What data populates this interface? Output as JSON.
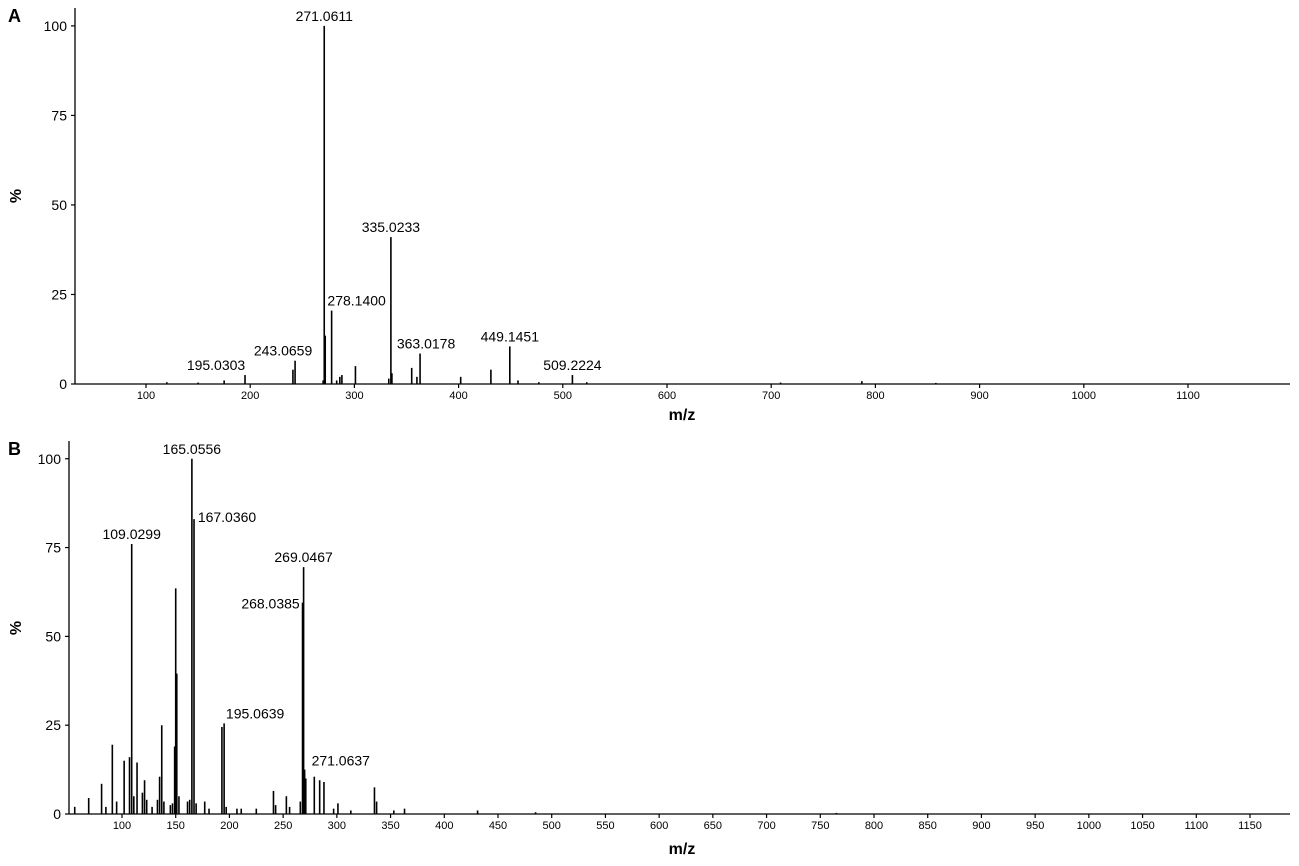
{
  "chart_data": [
    {
      "panel": "A",
      "type": "bar",
      "title": "",
      "xlabel": "m/z",
      "ylabel": "%",
      "xlim": [
        30,
        1200
      ],
      "ylim": [
        0,
        105
      ],
      "xticks": [
        100,
        200,
        300,
        400,
        500,
        600,
        700,
        800,
        900,
        1000,
        1100
      ],
      "xtick_labels": [
        "100",
        "200",
        "300",
        "400",
        "500",
        "600",
        "700",
        "800",
        "900",
        "1000",
        "1100"
      ],
      "yticks": [
        0,
        25,
        50,
        75,
        100
      ],
      "ytick_labels": [
        "0",
        "25",
        "50",
        "75",
        "100"
      ],
      "peaks": [
        {
          "mz": 120.0,
          "intensity": 0.5
        },
        {
          "mz": 150.0,
          "intensity": 0.4
        },
        {
          "mz": 175.0,
          "intensity": 1.0
        },
        {
          "mz": 195.0303,
          "intensity": 2.5
        },
        {
          "mz": 241.0,
          "intensity": 4.0
        },
        {
          "mz": 243.0659,
          "intensity": 6.5
        },
        {
          "mz": 270.0,
          "intensity": 1.0
        },
        {
          "mz": 271.0611,
          "intensity": 100
        },
        {
          "mz": 272.0,
          "intensity": 13.5
        },
        {
          "mz": 278.14,
          "intensity": 20.5
        },
        {
          "mz": 283.0,
          "intensity": 1.0
        },
        {
          "mz": 286.0,
          "intensity": 2.0
        },
        {
          "mz": 288.0,
          "intensity": 2.5
        },
        {
          "mz": 301.0,
          "intensity": 5.0
        },
        {
          "mz": 333.0,
          "intensity": 1.5
        },
        {
          "mz": 335.0233,
          "intensity": 41
        },
        {
          "mz": 336.0,
          "intensity": 3.0
        },
        {
          "mz": 355.0,
          "intensity": 4.5
        },
        {
          "mz": 360.0,
          "intensity": 2.0
        },
        {
          "mz": 363.0178,
          "intensity": 8.5
        },
        {
          "mz": 402.0,
          "intensity": 2.0
        },
        {
          "mz": 431.0,
          "intensity": 4.0
        },
        {
          "mz": 449.1451,
          "intensity": 10.5
        },
        {
          "mz": 457.0,
          "intensity": 1.0
        },
        {
          "mz": 477.0,
          "intensity": 0.5
        },
        {
          "mz": 509.2224,
          "intensity": 2.5
        },
        {
          "mz": 523.0,
          "intensity": 0.5
        },
        {
          "mz": 709.0,
          "intensity": 0.4
        },
        {
          "mz": 787.0,
          "intensity": 0.8
        },
        {
          "mz": 858.0,
          "intensity": 0.3
        }
      ],
      "annotations": [
        {
          "text": "271.0611",
          "mz": 271.0611,
          "intensity": 100
        },
        {
          "text": "335.0233",
          "mz": 335.0233,
          "intensity": 41
        },
        {
          "text": "278.1400",
          "mz": 278.14,
          "intensity": 20.5
        },
        {
          "text": "243.0659",
          "mz": 243.0659,
          "intensity": 6.5
        },
        {
          "text": "195.0303",
          "mz": 195.0303,
          "intensity": 2.5
        },
        {
          "text": "363.0178",
          "mz": 363.0178,
          "intensity": 8.5
        },
        {
          "text": "449.1451",
          "mz": 449.1451,
          "intensity": 10.5
        },
        {
          "text": "509.2224",
          "mz": 509.2224,
          "intensity": 2.5
        }
      ]
    },
    {
      "panel": "B",
      "type": "bar",
      "title": "",
      "xlabel": "m/z",
      "ylabel": "%",
      "xlim": [
        50,
        1190
      ],
      "ylim": [
        0,
        105
      ],
      "xticks": [
        100,
        150,
        200,
        250,
        300,
        350,
        400,
        450,
        500,
        550,
        600,
        650,
        700,
        750,
        800,
        850,
        900,
        950,
        1000,
        1050,
        1100,
        1150
      ],
      "xtick_labels": [
        "100",
        "150",
        "200",
        "250",
        "300",
        "350",
        "400",
        "450",
        "500",
        "550",
        "600",
        "650",
        "700",
        "750",
        "800",
        "850",
        "900",
        "950",
        "1000",
        "1050",
        "1100",
        "1150"
      ],
      "yticks": [
        0,
        25,
        50,
        75,
        100
      ],
      "ytick_labels": [
        "0",
        "25",
        "50",
        "75",
        "100"
      ],
      "peaks": [
        {
          "mz": 56.0,
          "intensity": 2.0
        },
        {
          "mz": 69.0,
          "intensity": 4.5
        },
        {
          "mz": 81.0,
          "intensity": 8.5
        },
        {
          "mz": 85.0,
          "intensity": 2.0
        },
        {
          "mz": 91.0,
          "intensity": 19.5
        },
        {
          "mz": 95.0,
          "intensity": 3.5
        },
        {
          "mz": 102.0,
          "intensity": 15.0
        },
        {
          "mz": 107.0,
          "intensity": 16.0
        },
        {
          "mz": 109.0299,
          "intensity": 76
        },
        {
          "mz": 111.0,
          "intensity": 5.0
        },
        {
          "mz": 114.0,
          "intensity": 14.5
        },
        {
          "mz": 119.0,
          "intensity": 6.0
        },
        {
          "mz": 121.0,
          "intensity": 9.5
        },
        {
          "mz": 123.0,
          "intensity": 4.0
        },
        {
          "mz": 128.0,
          "intensity": 2.0
        },
        {
          "mz": 133.0,
          "intensity": 4.0
        },
        {
          "mz": 135.0,
          "intensity": 10.5
        },
        {
          "mz": 137.0,
          "intensity": 25.0
        },
        {
          "mz": 139.0,
          "intensity": 3.5
        },
        {
          "mz": 145.0,
          "intensity": 2.5
        },
        {
          "mz": 147.0,
          "intensity": 3.0
        },
        {
          "mz": 149.0,
          "intensity": 19.0
        },
        {
          "mz": 150.0,
          "intensity": 63.5
        },
        {
          "mz": 151.0,
          "intensity": 39.5
        },
        {
          "mz": 153.0,
          "intensity": 5.0
        },
        {
          "mz": 161.0,
          "intensity": 3.5
        },
        {
          "mz": 163.0,
          "intensity": 4.0
        },
        {
          "mz": 165.0556,
          "intensity": 100
        },
        {
          "mz": 167.036,
          "intensity": 83
        },
        {
          "mz": 169.0,
          "intensity": 3.0
        },
        {
          "mz": 177.0,
          "intensity": 3.5
        },
        {
          "mz": 181.0,
          "intensity": 1.5
        },
        {
          "mz": 193.0,
          "intensity": 24.5
        },
        {
          "mz": 195.0639,
          "intensity": 25.5
        },
        {
          "mz": 197.0,
          "intensity": 2.0
        },
        {
          "mz": 207.0,
          "intensity": 1.5
        },
        {
          "mz": 211.0,
          "intensity": 1.5
        },
        {
          "mz": 225.0,
          "intensity": 1.5
        },
        {
          "mz": 241.0,
          "intensity": 6.5
        },
        {
          "mz": 243.0,
          "intensity": 2.5
        },
        {
          "mz": 253.0,
          "intensity": 5.0
        },
        {
          "mz": 256.0,
          "intensity": 2.0
        },
        {
          "mz": 266.0,
          "intensity": 3.5
        },
        {
          "mz": 268.0385,
          "intensity": 59.5
        },
        {
          "mz": 269.0467,
          "intensity": 69.5
        },
        {
          "mz": 270.0,
          "intensity": 12.5
        },
        {
          "mz": 271.0637,
          "intensity": 10.0
        },
        {
          "mz": 279.0,
          "intensity": 10.5
        },
        {
          "mz": 284.0,
          "intensity": 9.5
        },
        {
          "mz": 288.0,
          "intensity": 9.0
        },
        {
          "mz": 297.0,
          "intensity": 1.5
        },
        {
          "mz": 301.0,
          "intensity": 3.0
        },
        {
          "mz": 313.0,
          "intensity": 1.0
        },
        {
          "mz": 335.0,
          "intensity": 7.5
        },
        {
          "mz": 337.0,
          "intensity": 3.5
        },
        {
          "mz": 353.0,
          "intensity": 1.0
        },
        {
          "mz": 363.0,
          "intensity": 1.5
        },
        {
          "mz": 431.0,
          "intensity": 1.0
        },
        {
          "mz": 485.0,
          "intensity": 0.5
        },
        {
          "mz": 765.0,
          "intensity": 0.3
        }
      ],
      "annotations": [
        {
          "text": "165.0556",
          "mz": 165.0556,
          "intensity": 100
        },
        {
          "text": "167.0360",
          "mz": 167.036,
          "intensity": 83
        },
        {
          "text": "109.0299",
          "mz": 109.0299,
          "intensity": 76
        },
        {
          "text": "269.0467",
          "mz": 269.0467,
          "intensity": 69.5
        },
        {
          "text": "268.0385",
          "mz": 268.0385,
          "intensity": 59.5
        },
        {
          "text": "195.0639",
          "mz": 195.0639,
          "intensity": 25.5
        },
        {
          "text": "271.0637",
          "mz": 271.0637,
          "intensity": 10.0
        }
      ]
    }
  ]
}
